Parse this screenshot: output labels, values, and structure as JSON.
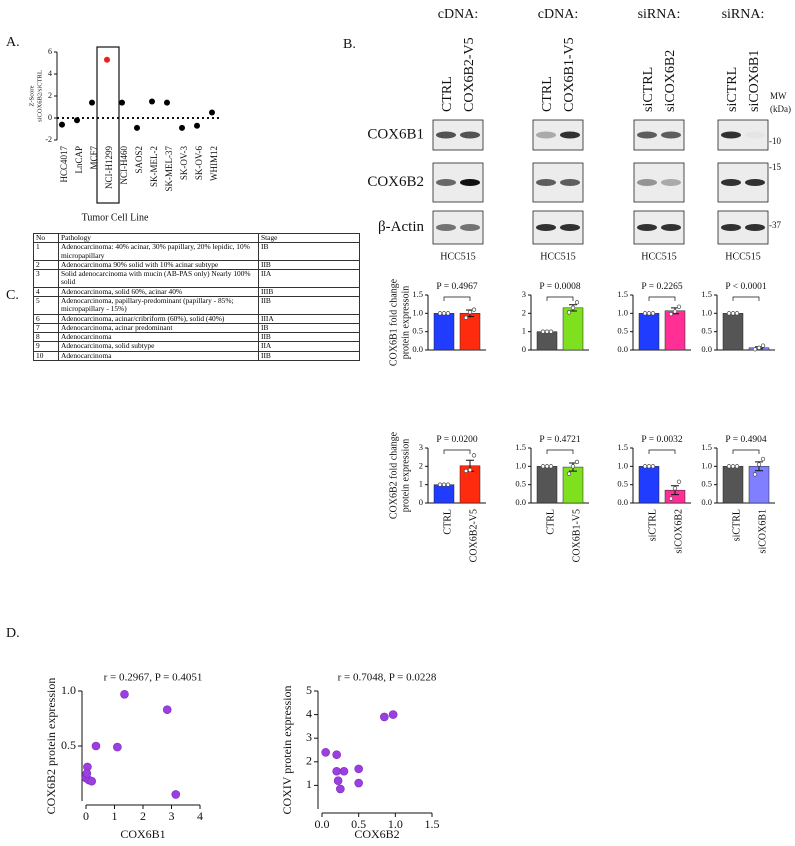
{
  "panel_labels": [
    "A.",
    "B.",
    "C.",
    "D."
  ],
  "blots": {
    "groups": [
      {
        "header": "cDNA:",
        "lanes": [
          "CTRL",
          "COX6B2-V5"
        ],
        "cell_line": "HCC515"
      },
      {
        "header": "cDNA:",
        "lanes": [
          "CTRL",
          "COX6B1-V5"
        ],
        "cell_line": "HCC515"
      },
      {
        "header": "siRNA:",
        "lanes": [
          "siCTRL",
          "siCOX6B2"
        ],
        "cell_line": "HCC515"
      },
      {
        "header": "siRNA:",
        "lanes": [
          "siCTRL",
          "siCOX6B1"
        ],
        "cell_line": "HCC515"
      }
    ],
    "rows": [
      "COX6B1",
      "COX6B2",
      "β-Actin"
    ],
    "mw_label": [
      "MW",
      "(kDa)"
    ],
    "markers": [
      "-10",
      "-15",
      "-37"
    ]
  },
  "table": {
    "header": [
      "No",
      "Pathology",
      "Stage"
    ],
    "rows": [
      [
        "1",
        "Adenocarcinoma: 40% acinar, 30% papillary, 20% lepidic, 10% micropapillary",
        "IB"
      ],
      [
        "2",
        "Adenocarcinoma 90% solid with 10% acinar subtype",
        "IIB"
      ],
      [
        "3",
        "Solid adenocarcinoma with mucin (AB-PAS only)  Nearly 100% solid",
        "IIA"
      ],
      [
        "4",
        "Adenocarcinoma, solid  60%, acinar  40%",
        "IIIB"
      ],
      [
        "5",
        "Adenocarcinoma, papillary-predominant (papillary - 85%; micropapillary - 15%)",
        "IIB"
      ],
      [
        "6",
        "Adenocarcinoma, acinar/cribriform (60%), solid (40%)",
        "IIIA"
      ],
      [
        "7",
        "Adenocarcinoma, acinar predominant",
        "IB"
      ],
      [
        "8",
        "Adenocarcinoma",
        "IIB"
      ],
      [
        "9",
        "Adenocarcinoma, solid subtype",
        "IIA"
      ],
      [
        "10",
        "Adenocarcinoma",
        "IIB"
      ]
    ]
  },
  "chart_data": [
    {
      "type": "dot",
      "ylabel": [
        "Z-Score",
        "siCOX6B2/siCTRL"
      ],
      "xlabel": "Tumor Cell Line",
      "categories": [
        "HCC4017",
        "LnCAP",
        "MCF7",
        "NCI-H1299",
        "NCI-H460",
        "SAOS2",
        "SK-MEL-2",
        "SK-MEL-37",
        "SK-OV-3",
        "SK-OV-6",
        "WHIM12"
      ],
      "values": [
        -0.6,
        -0.2,
        1.4,
        5.3,
        1.4,
        -0.9,
        1.5,
        1.4,
        -0.9,
        -0.7,
        0.5
      ],
      "colors": [
        "#000000",
        "#000000",
        "#000000",
        "#e8231a",
        "#000000",
        "#000000",
        "#000000",
        "#000000",
        "#000000",
        "#000000",
        "#000000"
      ],
      "ylim": [
        -2,
        6
      ],
      "yticks": [
        -2,
        0,
        2,
        4,
        6
      ]
    },
    {
      "type": "bar",
      "ylabel": [
        "COX6B1 fold change",
        "protein expressoin"
      ],
      "values": [
        1.0,
        1.0
      ],
      "errors": [
        0,
        0.09
      ],
      "points": [
        [
          1.0,
          1.0,
          1.0
        ],
        [
          0.88,
          1.03,
          1.1
        ]
      ],
      "colors": [
        "#1f3cff",
        "#ff2b0f"
      ],
      "annotation": "P = 0.4967",
      "ylim": [
        0,
        1.5
      ],
      "yticks": [
        {
          "value": 0,
          "label": "0.0"
        },
        0.5,
        {
          "value": 1,
          "label": "1.0"
        },
        1.5
      ]
    },
    {
      "type": "bar",
      "values": [
        1.0,
        2.3
      ],
      "errors": [
        0,
        0.17
      ],
      "points": [
        [
          1.0,
          1.0,
          1.0
        ],
        [
          2.05,
          2.3,
          2.6
        ]
      ],
      "colors": [
        "#555555",
        "#7ee01f"
      ],
      "annotation": "P = 0.0008",
      "ylim": [
        0,
        3
      ],
      "yticks": [
        0,
        1,
        2,
        3
      ]
    },
    {
      "type": "bar",
      "values": [
        1.0,
        1.07
      ],
      "errors": [
        0,
        0.08
      ],
      "points": [
        [
          1.0,
          1.0,
          1.0
        ],
        [
          0.98,
          1.05,
          1.18
        ]
      ],
      "colors": [
        "#1f3cff",
        "#ff2f95"
      ],
      "annotation": "P = 0.2265",
      "ylim": [
        0,
        1.5
      ],
      "yticks": [
        {
          "value": 0,
          "label": "0.0"
        },
        0.5,
        {
          "value": 1,
          "label": "1.0"
        },
        1.5
      ]
    },
    {
      "type": "bar",
      "values": [
        1.0,
        0.06
      ],
      "errors": [
        0,
        0.03
      ],
      "points": [
        [
          1.0,
          1.0,
          1.0
        ],
        [
          0.02,
          0.06,
          0.12
        ]
      ],
      "colors": [
        "#555555",
        "#7f7fff"
      ],
      "annotation": "P < 0.0001",
      "ylim": [
        0,
        1.5
      ],
      "yticks": [
        {
          "value": 0,
          "label": "0.0"
        },
        0.5,
        {
          "value": 1,
          "label": "1.0"
        },
        1.5
      ]
    },
    {
      "type": "bar",
      "ylabel": [
        "COX6B2 fold change",
        "protein expression"
      ],
      "categories": [
        "CTRL",
        "COX6B2-V5"
      ],
      "values": [
        1.0,
        2.03
      ],
      "errors": [
        0,
        0.3
      ],
      "points": [
        [
          1.0,
          1.0,
          1.0
        ],
        [
          1.75,
          1.8,
          2.6
        ]
      ],
      "colors": [
        "#1f3cff",
        "#ff2b0f"
      ],
      "annotation": "P = 0.0200",
      "ylim": [
        0,
        3
      ],
      "yticks": [
        0,
        1,
        2,
        3
      ]
    },
    {
      "type": "bar",
      "categories": [
        "CTRL",
        "COX6B1-V5"
      ],
      "values": [
        1.0,
        0.98
      ],
      "errors": [
        0,
        0.11
      ],
      "points": [
        [
          1.0,
          1.0,
          1.0
        ],
        [
          0.8,
          1.0,
          1.12
        ]
      ],
      "colors": [
        "#555555",
        "#7ee01f"
      ],
      "annotation": "P = 0.4721",
      "ylim": [
        0,
        1.5
      ],
      "yticks": [
        {
          "value": 0,
          "label": "0.0"
        },
        0.5,
        {
          "value": 1,
          "label": "1.0"
        },
        1.5
      ]
    },
    {
      "type": "bar",
      "categories": [
        "siCTRL",
        "siCOX6B2"
      ],
      "values": [
        1.0,
        0.35
      ],
      "errors": [
        0,
        0.12
      ],
      "points": [
        [
          1.0,
          1.0,
          1.0
        ],
        [
          0.12,
          0.4,
          0.58
        ]
      ],
      "colors": [
        "#1f3cff",
        "#ff2f95"
      ],
      "annotation": "P = 0.0032",
      "ylim": [
        0,
        1.5
      ],
      "yticks": [
        {
          "value": 0,
          "label": "0.0"
        },
        0.5,
        {
          "value": 1,
          "label": "1.0"
        },
        1.5
      ]
    },
    {
      "type": "bar",
      "categories": [
        "siCTRL",
        "siCOX6B1"
      ],
      "values": [
        1.0,
        1.0
      ],
      "errors": [
        0,
        0.12
      ],
      "points": [
        [
          1.0,
          1.0,
          1.0
        ],
        [
          0.78,
          1.05,
          1.2
        ]
      ],
      "colors": [
        "#555555",
        "#7f7fff"
      ],
      "annotation": "P = 0.4904",
      "ylim": [
        0,
        1.5
      ],
      "yticks": [
        {
          "value": 0,
          "label": "0.0"
        },
        0.5,
        {
          "value": 1,
          "label": "1.0"
        },
        1.5
      ]
    },
    {
      "type": "scatter",
      "annotation": "r = 0.2967, P = 0.4051",
      "xlabel": "COX6B1",
      "ylabel": "COX6B2 protein expression",
      "x": [
        0.0,
        0.05,
        0.1,
        0.2,
        0.03,
        0.35,
        1.1,
        1.35,
        2.85,
        3.15
      ],
      "y": [
        0.21,
        0.31,
        0.19,
        0.18,
        0.25,
        0.5,
        0.49,
        0.97,
        0.83,
        0.06
      ],
      "color": "#9b3fe0",
      "xlim": [
        0,
        4
      ],
      "xticks": [
        0,
        1,
        2,
        3,
        4
      ],
      "ylim": [
        0,
        1
      ],
      "yticks": [
        0.5,
        {
          "value": 1,
          "label": "1.0"
        }
      ]
    },
    {
      "type": "scatter",
      "annotation": "r = 0.7048, P = 0.0228",
      "xlabel": "COX6B2",
      "ylabel": "COXIV protein expression",
      "x": [
        0.05,
        0.2,
        0.2,
        0.22,
        0.25,
        0.3,
        0.5,
        0.5,
        0.85,
        0.97
      ],
      "y": [
        2.4,
        2.3,
        1.6,
        1.2,
        0.85,
        1.6,
        1.7,
        1.1,
        3.9,
        4.0
      ],
      "color": "#9b3fe0",
      "xlim": [
        0,
        1.5
      ],
      "xticks": [
        {
          "value": 0,
          "label": "0.0"
        },
        0.5,
        {
          "value": 1,
          "label": "1.0"
        },
        1.5
      ],
      "ylim": [
        0,
        5
      ],
      "yticks": [
        1,
        2,
        3,
        4,
        5
      ]
    }
  ]
}
